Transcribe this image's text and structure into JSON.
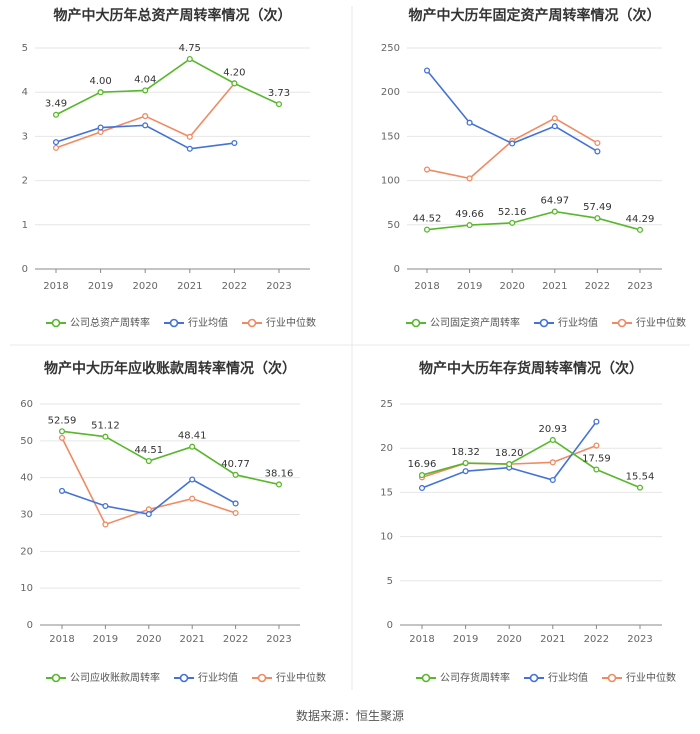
{
  "source_text": "数据来源：恒生聚源",
  "colors": {
    "company": "#58b82b",
    "industry_avg": "#4472d8",
    "industry_median": "#f08a62",
    "axis": "#888888",
    "grid": "#e6e6e6",
    "title": "#333333",
    "label": "#333333",
    "tick": "#666666",
    "legend_text": "#555555",
    "divider": "#e8e8e8"
  },
  "chart_data": [
    {
      "type": "line",
      "title": "物产中大历年总资产周转率情况（次）",
      "categories": [
        "2018",
        "2019",
        "2020",
        "2021",
        "2022",
        "2023"
      ],
      "ylim": [
        0,
        5
      ],
      "yticks": [
        0,
        1,
        2,
        3,
        4,
        5
      ],
      "series": [
        {
          "name": "公司总资产周转率",
          "role": "company",
          "values": [
            3.49,
            4.0,
            4.04,
            4.75,
            4.2,
            3.73
          ],
          "labels": [
            "3.49",
            "4.00",
            "4.04",
            "4.75",
            "4.20",
            "3.73"
          ]
        },
        {
          "name": "行业均值",
          "role": "industry_avg",
          "values": [
            2.87,
            3.2,
            3.25,
            2.72,
            2.85,
            null
          ]
        },
        {
          "name": "行业中位数",
          "role": "industry_median",
          "values": [
            2.74,
            3.1,
            3.46,
            2.99,
            4.2,
            null
          ]
        }
      ]
    },
    {
      "type": "line",
      "title": "物产中大历年固定资产周转率情况（次）",
      "categories": [
        "2018",
        "2019",
        "2020",
        "2021",
        "2022",
        "2023"
      ],
      "ylim": [
        0,
        250
      ],
      "yticks": [
        0,
        50,
        100,
        150,
        200,
        250
      ],
      "series": [
        {
          "name": "公司固定资产周转率",
          "role": "company",
          "values": [
            44.52,
            49.66,
            52.16,
            64.97,
            57.49,
            44.29
          ],
          "labels": [
            "44.52",
            "49.66",
            "52.16",
            "64.97",
            "57.49",
            "44.29"
          ]
        },
        {
          "name": "行业均值",
          "role": "industry_avg",
          "values": [
            224.5,
            165.5,
            142.0,
            161.5,
            133.0,
            null
          ]
        },
        {
          "name": "行业中位数",
          "role": "industry_median",
          "values": [
            112.5,
            102.5,
            145.0,
            170.5,
            142.5,
            null
          ]
        }
      ]
    },
    {
      "type": "line",
      "title": "物产中大历年应收账款周转率情况（次）",
      "categories": [
        "2018",
        "2019",
        "2020",
        "2021",
        "2022",
        "2023"
      ],
      "ylim": [
        0,
        60
      ],
      "yticks": [
        0,
        10,
        20,
        30,
        40,
        50,
        60
      ],
      "series": [
        {
          "name": "公司应收账款周转率",
          "role": "company",
          "values": [
            52.59,
            51.12,
            44.51,
            48.41,
            40.77,
            38.16
          ],
          "labels": [
            "52.59",
            "51.12",
            "44.51",
            "48.41",
            "40.77",
            "38.16"
          ]
        },
        {
          "name": "行业均值",
          "role": "industry_avg",
          "values": [
            36.4,
            32.3,
            30.1,
            39.5,
            33.0,
            null
          ]
        },
        {
          "name": "行业中位数",
          "role": "industry_median",
          "values": [
            50.8,
            27.3,
            31.4,
            34.3,
            30.4,
            null
          ]
        }
      ]
    },
    {
      "type": "line",
      "title": "物产中大历年存货周转率情况（次）",
      "categories": [
        "2018",
        "2019",
        "2020",
        "2021",
        "2022",
        "2023"
      ],
      "ylim": [
        0,
        25
      ],
      "yticks": [
        0,
        5,
        10,
        15,
        20,
        25
      ],
      "series": [
        {
          "name": "公司存货周转率",
          "role": "company",
          "values": [
            16.96,
            18.32,
            18.2,
            20.93,
            17.59,
            15.54
          ],
          "labels": [
            "16.96",
            "18.32",
            "18.20",
            "20.93",
            "17.59",
            "15.54"
          ]
        },
        {
          "name": "行业均值",
          "role": "industry_avg",
          "values": [
            15.5,
            17.4,
            17.8,
            16.4,
            23.0,
            null
          ]
        },
        {
          "name": "行业中位数",
          "role": "industry_median",
          "values": [
            16.7,
            18.3,
            18.2,
            18.4,
            20.3,
            null
          ]
        }
      ]
    }
  ]
}
